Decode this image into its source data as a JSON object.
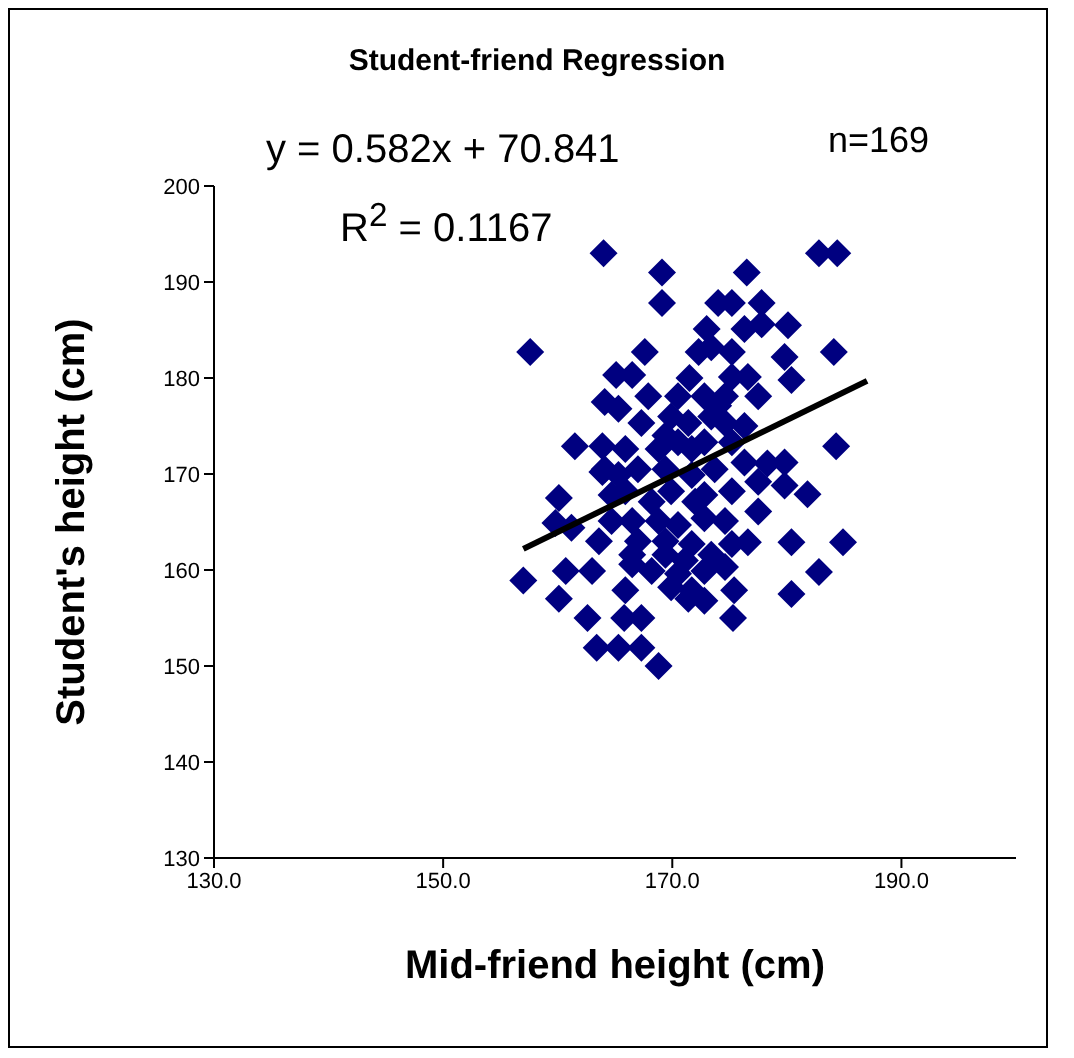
{
  "chart_data": {
    "type": "scatter",
    "title": "Student-friend Regression",
    "xlabel": "Mid-friend height (cm)",
    "ylabel": "Student's height (cm)",
    "annotations": [
      "y = 0.582x + 70.841",
      "R$^{2}$ = 0.1167",
      "n=169"
    ],
    "xlim": [
      130,
      200
    ],
    "xticks": [
      {
        "value": 130,
        "label": "130.0"
      },
      {
        "value": 150,
        "label": "150.0"
      },
      {
        "value": 170,
        "label": "170.0"
      },
      {
        "value": 190,
        "label": "190.0"
      }
    ],
    "ylim": [
      130,
      200
    ],
    "yticks": [
      130,
      140,
      150,
      160,
      170,
      180,
      190,
      200
    ],
    "grid": false,
    "legend": false,
    "series": [
      {
        "type": "scatter",
        "color": "#000080",
        "marker": "diamond",
        "x": [
          164.0,
          169.1,
          176.5,
          182.8,
          184.4,
          169.1,
          174.0,
          175.2,
          177.8,
          173.0,
          176.3,
          177.8,
          180.1,
          157.6,
          167.6,
          172.3,
          173.4,
          175.2,
          184.1,
          179.8,
          165.1,
          166.5,
          171.5,
          175.2,
          176.6,
          180.4,
          164.1,
          165.3,
          167.9,
          170.5,
          172.8,
          174.6,
          177.5,
          174.0,
          167.3,
          169.9,
          171.4,
          174.6,
          176.3,
          161.5,
          163.9,
          165.9,
          168.8,
          170.5,
          172.8,
          175.2,
          184.3,
          163.9,
          165.3,
          167.0,
          169.4,
          171.7,
          173.7,
          176.3,
          178.3,
          179.8,
          160.1,
          165.9,
          169.9,
          172.8,
          175.2,
          177.5,
          179.8,
          181.8,
          159.8,
          161.2,
          164.7,
          166.5,
          168.8,
          170.5,
          172.8,
          174.6,
          177.5,
          163.6,
          169.4,
          171.7,
          175.2,
          176.6,
          180.4,
          184.9,
          160.7,
          163.0,
          166.5,
          168.2,
          170.5,
          172.8,
          174.6,
          157.0,
          165.9,
          169.9,
          171.7,
          175.4,
          182.8,
          160.1,
          171.4,
          172.8,
          180.4,
          162.6,
          165.8,
          167.3,
          175.3,
          163.4,
          165.3,
          167.3,
          168.8,
          168.2,
          169.4,
          167.0,
          172.0,
          164.7,
          173.4,
          171.1,
          166.5,
          169.4,
          173.4,
          164.1,
          171.7
        ],
        "values": [
          193.0,
          191.0,
          191.0,
          193.0,
          193.0,
          187.8,
          187.8,
          187.8,
          187.8,
          185.1,
          185.1,
          185.6,
          185.5,
          182.7,
          182.7,
          182.7,
          183.2,
          182.7,
          182.7,
          182.2,
          180.3,
          180.3,
          180.0,
          180.1,
          180.1,
          179.8,
          177.5,
          176.8,
          178.1,
          178.1,
          178.1,
          178.1,
          178.1,
          177.1,
          175.3,
          176.0,
          175.3,
          175.3,
          175.0,
          172.9,
          172.9,
          172.6,
          172.6,
          173.3,
          173.3,
          173.3,
          172.9,
          170.2,
          169.9,
          170.5,
          170.5,
          169.9,
          170.5,
          171.2,
          171.1,
          171.2,
          167.5,
          168.2,
          168.2,
          167.8,
          168.2,
          169.2,
          168.8,
          167.9,
          164.9,
          164.4,
          165.1,
          165.1,
          165.1,
          164.7,
          165.4,
          165.1,
          166.1,
          163.0,
          163.0,
          162.7,
          162.7,
          162.9,
          162.9,
          162.9,
          159.9,
          159.9,
          160.6,
          159.9,
          159.6,
          159.9,
          160.3,
          158.9,
          157.9,
          158.2,
          157.9,
          157.9,
          159.8,
          157.0,
          157.0,
          156.8,
          157.5,
          155.0,
          155.0,
          155.0,
          155.0,
          151.9,
          151.9,
          151.9,
          150.0,
          167.1,
          161.6,
          163.0,
          167.1,
          167.8,
          161.6,
          161.0,
          161.6,
          174.0,
          176.0,
          170.5,
          172.6
        ]
      },
      {
        "type": "line",
        "color": "#000000",
        "marker": "none",
        "line_style": "solid",
        "x": [
          157,
          187
        ],
        "values": [
          162.2,
          179.7
        ]
      }
    ]
  }
}
